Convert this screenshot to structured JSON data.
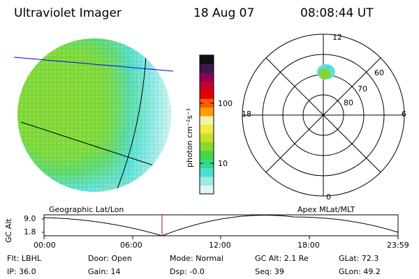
{
  "header": {
    "title": "Ultraviolet Imager",
    "date": "18 Aug 07",
    "time": "08:08:44 UT"
  },
  "colorbar": {
    "unit_label": "photon cm⁻²s⁻¹",
    "ticks": [
      "100",
      "10"
    ],
    "colors": [
      "#dff4f4",
      "#9ee8e6",
      "#4fdcd6",
      "#35d98a",
      "#45d545",
      "#8ad82e",
      "#c4e02a",
      "#f0ec40",
      "#f2f2b0",
      "#ff9e00",
      "#ff5a00",
      "#e00000",
      "#c4002c",
      "#900050",
      "#3a1a4a",
      "#101018"
    ]
  },
  "geo_panel": {
    "label": "Geographic Lat/Lon",
    "colors": {
      "disk_green": "#7ed838",
      "disk_cyan": "#5fe0de",
      "disk_pale": "#c8f0f0",
      "grid_line": "#000000",
      "terminator": "#0000ff"
    }
  },
  "polar_panel": {
    "label": "Apex MLat/MLT",
    "mlt_labels": [
      "12",
      "18",
      "6",
      "0"
    ],
    "lat_labels": [
      "60",
      "70",
      "80"
    ]
  },
  "altitude_strip": {
    "axis_label": "GC Alt",
    "y_ticks": [
      "9.0",
      "1.8"
    ],
    "x_ticks": [
      "00:00",
      "06:00",
      "12:00",
      "18:00",
      "23:59"
    ],
    "current_marker_color": "#e00000"
  },
  "info": {
    "flt": "Flt: LBHL",
    "ip": "IP: 36.0",
    "door": "Door: Open",
    "gain": "Gain: 14",
    "mode": "Mode: Normal",
    "dsp": "Dsp:   -0.0",
    "gc_alt": "GC Alt: 2.1 Re",
    "seq": "Seq: 39",
    "glat": "GLat:  72.3",
    "glon": "GLon:  49.2"
  }
}
